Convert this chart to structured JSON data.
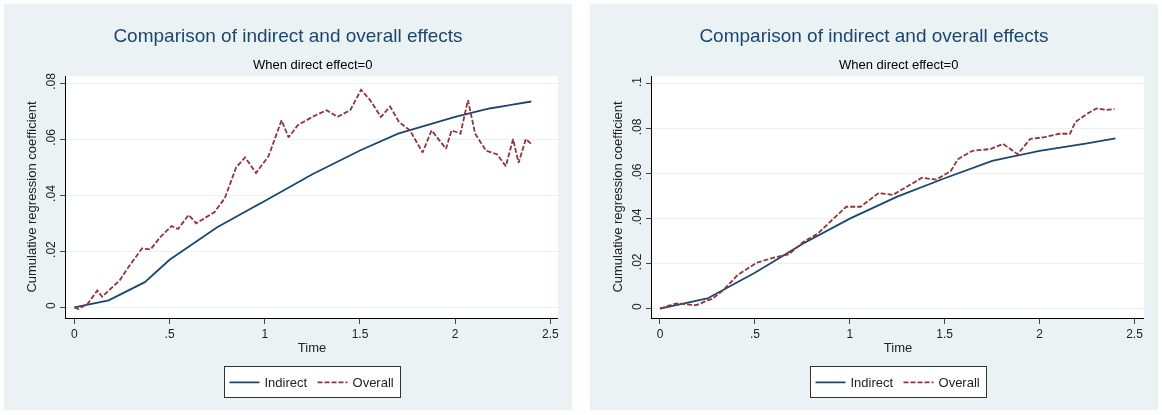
{
  "chart_data": [
    {
      "type": "line",
      "title": "Comparison of indirect and overall effects",
      "subtitle": "When direct effect=0",
      "xlabel": "Time",
      "ylabel": "Cumulative regression coefficient",
      "xlim": [
        -0.044,
        2.54
      ],
      "xticks": [
        0,
        {
          "value": 0.5,
          "label": ".5"
        },
        1,
        {
          "value": 1.5,
          "label": "1.5"
        },
        2,
        {
          "value": 2.5,
          "label": "2.5"
        }
      ],
      "ylim": [
        -0.0038,
        0.0826
      ],
      "yticks": [
        0,
        {
          "value": 0.02,
          "label": ".02"
        },
        {
          "value": 0.04,
          "label": ".04"
        },
        {
          "value": 0.06,
          "label": ".06"
        },
        {
          "value": 0.08,
          "label": ".08"
        }
      ],
      "grid": "y",
      "legend": "bottom",
      "series": [
        {
          "name": "Indirect",
          "color": "#1a476f",
          "line_style": "solid",
          "x": [
            0,
            0.18,
            0.37,
            0.5,
            0.75,
            1.0,
            1.25,
            1.5,
            1.7,
            2.0,
            2.18,
            2.4
          ],
          "values": [
            0,
            0.0025,
            0.009,
            0.017,
            0.0286,
            0.038,
            0.0475,
            0.056,
            0.062,
            0.068,
            0.071,
            0.0735
          ]
        },
        {
          "name": "Overall",
          "color": "#90353b",
          "line_style": "dashed",
          "x": [
            0,
            0.02,
            0.07,
            0.12,
            0.146,
            0.24,
            0.28,
            0.355,
            0.4,
            0.45,
            0.51,
            0.545,
            0.6,
            0.64,
            0.736,
            0.79,
            0.85,
            0.897,
            0.954,
            1.02,
            1.088,
            1.125,
            1.173,
            1.25,
            1.325,
            1.382,
            1.449,
            1.506,
            1.553,
            1.61,
            1.658,
            1.705,
            1.762,
            1.829,
            1.876,
            1.952,
            1.981,
            2.028,
            2.067,
            2.105,
            2.162,
            2.219,
            2.266,
            2.304,
            2.333,
            2.371,
            2.4
          ],
          "values": [
            0,
            -0.0006,
            0.0013,
            0.006,
            0.0038,
            0.0098,
            0.014,
            0.021,
            0.0207,
            0.025,
            0.029,
            0.028,
            0.033,
            0.03,
            0.034,
            0.039,
            0.05,
            0.0535,
            0.048,
            0.054,
            0.0668,
            0.0607,
            0.065,
            0.068,
            0.0704,
            0.068,
            0.0704,
            0.0777,
            0.074,
            0.068,
            0.0717,
            0.0662,
            0.0632,
            0.0553,
            0.0632,
            0.0566,
            0.0632,
            0.062,
            0.074,
            0.062,
            0.0559,
            0.0547,
            0.0504,
            0.0601,
            0.0516,
            0.0601,
            0.0583
          ]
        }
      ]
    },
    {
      "type": "line",
      "title": "Comparison of indirect and overall effects",
      "subtitle": "When direct effect=0",
      "xlabel": "Time",
      "ylabel": "Cumulative regression coefficient",
      "xlim": [
        -0.042,
        2.55
      ],
      "xticks": [
        0,
        {
          "value": 0.5,
          "label": ".5"
        },
        1,
        {
          "value": 1.5,
          "label": "1.5"
        },
        2,
        {
          "value": 2.5,
          "label": "2.5"
        }
      ],
      "ylim": [
        -0.0042,
        0.1035
      ],
      "yticks": [
        0,
        {
          "value": 0.02,
          "label": ".02"
        },
        {
          "value": 0.04,
          "label": ".04"
        },
        {
          "value": 0.06,
          "label": ".06"
        },
        {
          "value": 0.08,
          "label": ".08"
        },
        {
          "value": 0.1,
          "label": ".1"
        }
      ],
      "grid": "y",
      "legend": "bottom",
      "series": [
        {
          "name": "Indirect",
          "color": "#1a476f",
          "line_style": "solid",
          "x": [
            0,
            0.25,
            0.5,
            0.75,
            1.0,
            1.25,
            1.5,
            1.75,
            2.0,
            2.25,
            2.4
          ],
          "values": [
            0,
            0.0045,
            0.0159,
            0.0287,
            0.04,
            0.0498,
            0.058,
            0.0657,
            0.0702,
            0.0735,
            0.0757
          ]
        },
        {
          "name": "Overall",
          "color": "#90353b",
          "line_style": "dashed",
          "x": [
            0,
            0.087,
            0.19,
            0.278,
            0.335,
            0.41,
            0.51,
            0.6,
            0.68,
            0.753,
            0.829,
            0.905,
            0.981,
            1.057,
            1.152,
            1.228,
            1.304,
            1.38,
            1.456,
            1.532,
            1.57,
            1.646,
            1.741,
            1.808,
            1.884,
            1.951,
            2.027,
            2.103,
            2.16,
            2.189,
            2.255,
            2.3,
            2.35,
            2.395
          ],
          "values": [
            0,
            0.0023,
            0.0015,
            0.0045,
            0.0083,
            0.015,
            0.0204,
            0.0227,
            0.0242,
            0.0295,
            0.0332,
            0.0393,
            0.0453,
            0.0453,
            0.0514,
            0.0506,
            0.0544,
            0.0582,
            0.0574,
            0.0612,
            0.0665,
            0.0702,
            0.071,
            0.0733,
            0.0687,
            0.0755,
            0.0763,
            0.0778,
            0.0778,
            0.0831,
            0.0869,
            0.0891,
            0.0884,
            0.0888
          ]
        }
      ]
    }
  ]
}
